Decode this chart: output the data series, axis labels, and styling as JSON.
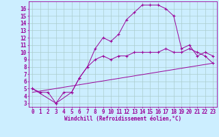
{
  "xlabel": "Windchill (Refroidissement éolien,°C)",
  "bg_color": "#cceeff",
  "grid_color": "#aacccc",
  "line_color": "#990099",
  "xlim": [
    -0.5,
    23.5
  ],
  "ylim": [
    2.5,
    17.0
  ],
  "xticks": [
    0,
    1,
    2,
    3,
    4,
    5,
    6,
    7,
    8,
    9,
    10,
    11,
    12,
    13,
    14,
    15,
    16,
    17,
    18,
    19,
    20,
    21,
    22,
    23
  ],
  "yticks": [
    3,
    4,
    5,
    6,
    7,
    8,
    9,
    10,
    11,
    12,
    13,
    14,
    15,
    16
  ],
  "curve1_x": [
    0,
    1,
    2,
    3,
    4,
    5,
    6,
    7,
    8,
    9,
    10,
    11,
    12,
    13,
    14,
    15,
    16,
    17,
    18,
    19,
    20,
    21,
    22,
    23
  ],
  "curve1_y": [
    5,
    4.5,
    4.5,
    3,
    4.5,
    4.5,
    6.5,
    8.0,
    10.5,
    12.0,
    11.5,
    12.5,
    14.5,
    15.5,
    16.5,
    16.5,
    16.5,
    16.0,
    15.0,
    10.5,
    11.0,
    9.5,
    10.0,
    9.5
  ],
  "curve2_x": [
    0,
    3,
    5,
    6,
    7,
    8,
    9,
    10,
    11,
    12,
    13,
    14,
    15,
    16,
    17,
    18,
    19,
    20,
    21,
    22,
    23
  ],
  "curve2_y": [
    5,
    3,
    4.5,
    6.5,
    8.0,
    9.0,
    9.5,
    9.0,
    9.5,
    9.5,
    10.0,
    10.0,
    10.0,
    10.0,
    10.5,
    10.0,
    10.0,
    10.5,
    10.0,
    9.5,
    8.5
  ],
  "line_x": [
    0,
    23
  ],
  "line_y": [
    4.5,
    8.5
  ],
  "tick_fontsize": 5.5,
  "xlabel_fontsize": 5.5
}
